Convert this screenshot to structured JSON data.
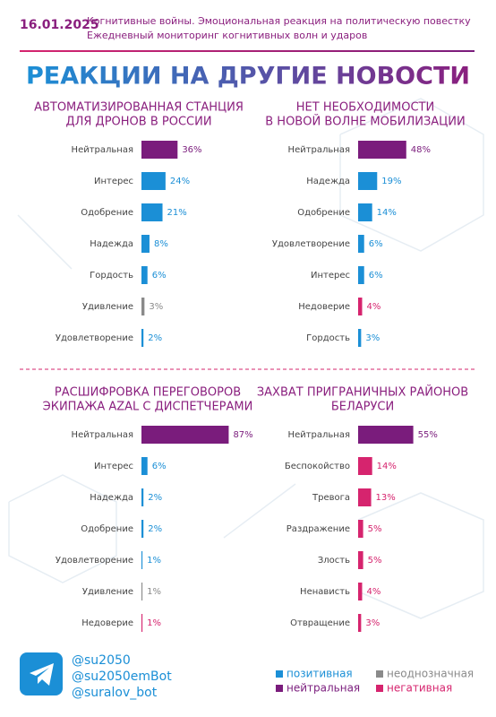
{
  "header": {
    "date": "16.01.2025",
    "subtitle": [
      "Когнитивные войны. Эмоциональная реакция на политическую повестку",
      "Ежедневный мониторинг когнитивных волн и ударов"
    ],
    "title": "РЕАКЦИИ НА ДРУГИЕ НОВОСТИ"
  },
  "chart_data": [
    {
      "type": "bar",
      "title": [
        "АВТОМАТИЗИРОВАННАЯ СТАНЦИЯ",
        "ДЛЯ ДРОНОВ В РОССИИ"
      ],
      "categories": [
        "Нейтральная",
        "Интерес",
        "Одобрение",
        "Надежда",
        "Гордость",
        "Удивление",
        "Удовлетворение"
      ],
      "values": [
        36,
        24,
        21,
        8,
        6,
        3,
        2
      ],
      "value_labels": [
        "36%",
        "24%",
        "21%",
        "8%",
        "6%",
        "3%",
        "2%"
      ],
      "colors": [
        "#7a1c7c",
        "#1b8fd6",
        "#1b8fd6",
        "#1b8fd6",
        "#1b8fd6",
        "#8a8a8a",
        "#1b8fd6"
      ]
    },
    {
      "type": "bar",
      "title": [
        "НЕТ НЕОБХОДИМОСТИ",
        "В НОВОЙ ВОЛНЕ МОБИЛИЗАЦИИ"
      ],
      "categories": [
        "Нейтральная",
        "Надежда",
        "Одобрение",
        "Удовлетворение",
        "Интерес",
        "Недоверие",
        "Гордость"
      ],
      "values": [
        48,
        19,
        14,
        6,
        6,
        4,
        3
      ],
      "value_labels": [
        "48%",
        "19%",
        "14%",
        "6%",
        "6%",
        "4%",
        "3%"
      ],
      "colors": [
        "#7a1c7c",
        "#1b8fd6",
        "#1b8fd6",
        "#1b8fd6",
        "#1b8fd6",
        "#d6246e",
        "#1b8fd6"
      ]
    },
    {
      "type": "bar",
      "title": [
        "РАСШИФРОВКА ПЕРЕГОВОРОВ",
        "ЭКИПАЖА AZAL С ДИСПЕТЧЕРАМИ"
      ],
      "categories": [
        "Нейтральная",
        "Интерес",
        "Надежда",
        "Одобрение",
        "Удовлетворение",
        "Удивление",
        "Недоверие"
      ],
      "values": [
        87,
        6,
        2,
        2,
        1,
        1,
        1
      ],
      "value_labels": [
        "87%",
        "6%",
        "2%",
        "2%",
        "1%",
        "1%",
        "1%"
      ],
      "colors": [
        "#7a1c7c",
        "#1b8fd6",
        "#1b8fd6",
        "#1b8fd6",
        "#1b8fd6",
        "#8a8a8a",
        "#d6246e"
      ]
    },
    {
      "type": "bar",
      "title": [
        "ЗАХВАТ ПРИГРАНИЧНЫХ РАЙОНОВ",
        "БЕЛАРУСИ"
      ],
      "categories": [
        "Нейтральная",
        "Беспокойство",
        "Тревога",
        "Раздражение",
        "Злость",
        "Ненависть",
        "Отвращение"
      ],
      "values": [
        55,
        14,
        13,
        5,
        5,
        4,
        3
      ],
      "value_labels": [
        "55%",
        "14%",
        "13%",
        "5%",
        "5%",
        "4%",
        "3%"
      ],
      "colors": [
        "#7a1c7c",
        "#d6246e",
        "#d6246e",
        "#d6246e",
        "#d6246e",
        "#d6246e",
        "#d6246e"
      ]
    }
  ],
  "legend": [
    {
      "name": "позитивная",
      "color": "#1b8fd6"
    },
    {
      "name": "неоднозначная",
      "color": "#8a8a8a"
    },
    {
      "name": "нейтральная",
      "color": "#7a1c7c"
    },
    {
      "name": "негативная",
      "color": "#d6246e"
    }
  ],
  "footer": {
    "handles": [
      "@su2050",
      "@su2050emBot",
      "@suralov_bot"
    ]
  }
}
